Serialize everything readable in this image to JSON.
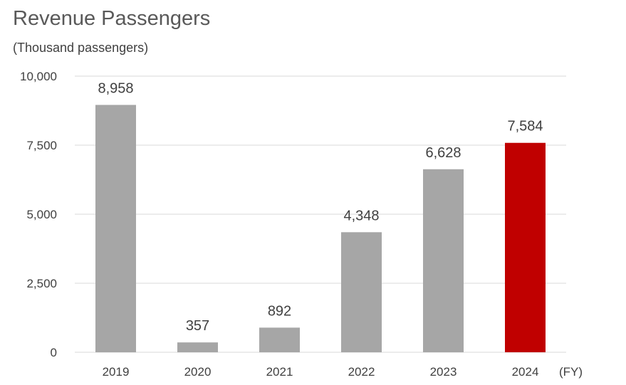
{
  "chart_data": {
    "type": "bar",
    "title": "Revenue Passengers",
    "unit_label": "(Thousand passengers)",
    "xlabel": "(FY)",
    "ylabel": "",
    "categories": [
      "2019",
      "2020",
      "2021",
      "2022",
      "2023",
      "2024"
    ],
    "values": [
      8958,
      357,
      892,
      4348,
      6628,
      7584
    ],
    "value_labels": [
      "8,958",
      "357",
      "892",
      "4,348",
      "6,628",
      "7,584"
    ],
    "ylim": [
      0,
      10000
    ],
    "yticks": [
      0,
      2500,
      5000,
      7500,
      10000
    ],
    "ytick_labels": [
      "0",
      "2,500",
      "5,000",
      "7,500",
      "10,000"
    ],
    "grid": true,
    "legend": "none",
    "colors": {
      "default_bar": "#a6a6a6",
      "highlight_bar": "#c00000",
      "highlight_category": "2024"
    }
  }
}
